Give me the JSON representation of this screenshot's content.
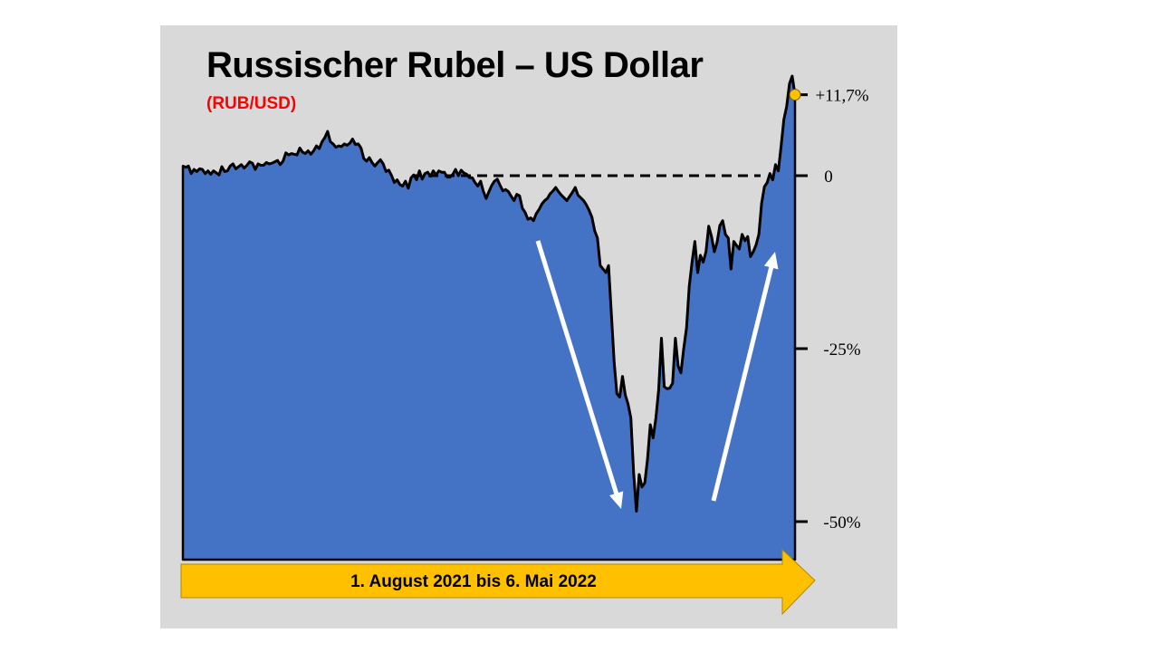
{
  "chart_data": {
    "type": "area",
    "title": "Russischer Rubel – US Dollar",
    "subtitle": "(RUB/USD)",
    "period_label": "1. August 2021 bis 6. Mai 2022",
    "y_unit": "%",
    "ylim": [
      -55,
      15
    ],
    "yticks": [
      {
        "value": 11.7,
        "label": "+11,7%"
      },
      {
        "value": 0,
        "label": "0"
      },
      {
        "value": -25,
        "label": "-25%"
      },
      {
        "value": -50,
        "label": "-50%"
      }
    ],
    "x_start": "2021-08-01",
    "x_end": "2022-05-06",
    "baseline_value": 0,
    "end_value": 11.7,
    "series": [
      {
        "values": [
          1.4,
          1.2,
          1.4,
          0.3,
          0.9,
          0.6,
          1.0,
          0.9,
          0.3,
          0.7,
          0.2,
          0.7,
          0.4,
          0.1,
          1.3,
          0.6,
          0.7,
          1.4,
          1.7,
          1.0,
          1.3,
          1.6,
          1.1,
          1.5,
          2.0,
          1.8,
          0.9,
          1.7,
          1.5,
          1.5,
          1.9,
          1.7,
          1.8,
          2.0,
          2.2,
          1.6,
          2.1,
          3.3,
          3.0,
          3.2,
          3.1,
          3.0,
          4.0,
          3.4,
          3.2,
          3.6,
          3.1,
          3.6,
          4.3,
          3.9,
          4.9,
          5.5,
          6.4,
          4.9,
          4.6,
          4.1,
          4.3,
          4.2,
          4.6,
          4.4,
          4.7,
          5.3,
          4.5,
          4.6,
          4.0,
          2.5,
          2.1,
          2.6,
          1.9,
          1.4,
          1.9,
          2.3,
          1.7,
          0.6,
          0.8,
          0.0,
          -1.0,
          -0.6,
          -1.3,
          -1.5,
          -0.8,
          -1.8,
          -0.3,
          0.1,
          -0.6,
          0.7,
          -0.5,
          0.3,
          0.5,
          -0.1,
          0.7,
          0.1,
          0.7,
          0.5,
          0.5,
          -0.2,
          -0.2,
          0.2,
          0.9,
          0.0,
          0.8,
          0.4,
          0.2,
          -0.3,
          -0.3,
          -1.0,
          -1.5,
          -0.8,
          -2.3,
          -3.3,
          -2.3,
          -1.4,
          -0.8,
          -0.5,
          -1.4,
          -2.2,
          -2.0,
          -2.3,
          -3.0,
          -3.6,
          -2.7,
          -2.9,
          -4.7,
          -5.3,
          -6.3,
          -6.1,
          -6.5,
          -5.5,
          -4.9,
          -4.1,
          -3.6,
          -3.3,
          -2.6,
          -2.2,
          -1.7,
          -2.3,
          -2.8,
          -3.2,
          -3.6,
          -3.0,
          -2.4,
          -1.7,
          -2.8,
          -3.2,
          -3.6,
          -4.2,
          -5.0,
          -6.0,
          -8.0,
          -9.0,
          -13.0,
          -13.5,
          -14.0,
          -13.0,
          -20.0,
          -27.0,
          -31.5,
          -32.0,
          -29.0,
          -31.7,
          -33.0,
          -35.0,
          -43.0,
          -48.5,
          -43.2,
          -45.0,
          -44.4,
          -41.0,
          -36.0,
          -37.9,
          -35.0,
          -31.0,
          -23.5,
          -30.5,
          -30.8,
          -30.7,
          -30.0,
          -23.5,
          -27.5,
          -28.5,
          -25.0,
          -22.0,
          -16.0,
          -12.5,
          -9.5,
          -14.0,
          -11.5,
          -12.5,
          -11.0,
          -7.3,
          -8.8,
          -11.0,
          -9.6,
          -7.2,
          -6.5,
          -8.5,
          -9.0,
          -13.5,
          -9.5,
          -10.1,
          -10.6,
          -8.5,
          -9.4,
          -8.8,
          -11.7,
          -11.0,
          -10.0,
          -8.5,
          -4.0,
          -1.6,
          -1.0,
          0.3,
          -0.6,
          1.6,
          0.7,
          4.2,
          8.1,
          10.0,
          13.3,
          14.4,
          11.7
        ]
      }
    ],
    "trend_arrows": [
      {
        "direction": "down"
      },
      {
        "direction": "up"
      }
    ],
    "colors": {
      "fill": "#4472c4",
      "line": "#000000",
      "panel": "#d9d9d9",
      "period_band": "#ffc000",
      "end_marker": "#ffc000",
      "arrows": "#ffffff",
      "subtitle": "#ff0000"
    },
    "grid": false,
    "legend": "none"
  }
}
